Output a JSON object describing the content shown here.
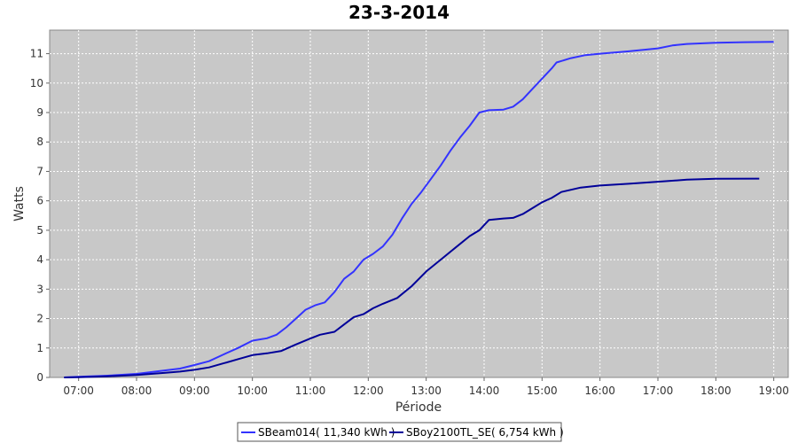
{
  "chart_data": {
    "type": "line",
    "title": "23-3-2014",
    "xlabel": "Période",
    "ylabel": "Watts",
    "x_ticks": [
      "07:00",
      "08:00",
      "09:00",
      "10:00",
      "11:00",
      "12:00",
      "13:00",
      "14:00",
      "15:00",
      "16:00",
      "17:00",
      "18:00",
      "19:00"
    ],
    "xlim": [
      "06:30",
      "19:15"
    ],
    "ylim": [
      0,
      11.8
    ],
    "y_ticks": [
      0,
      1,
      2,
      3,
      4,
      5,
      6,
      7,
      8,
      9,
      10,
      11
    ],
    "grid": true,
    "legend_position": "bottom",
    "series": [
      {
        "name": "SBeam014( 11,340 kWh )",
        "color": "#3333ff",
        "points": [
          [
            "06:45",
            0.0
          ],
          [
            "07:00",
            0.02
          ],
          [
            "07:30",
            0.06
          ],
          [
            "08:00",
            0.12
          ],
          [
            "08:15",
            0.18
          ],
          [
            "08:30",
            0.24
          ],
          [
            "08:45",
            0.3
          ],
          [
            "09:00",
            0.42
          ],
          [
            "09:15",
            0.55
          ],
          [
            "09:30",
            0.78
          ],
          [
            "09:45",
            1.0
          ],
          [
            "10:00",
            1.25
          ],
          [
            "10:15",
            1.33
          ],
          [
            "10:25",
            1.45
          ],
          [
            "10:35",
            1.7
          ],
          [
            "10:45",
            2.0
          ],
          [
            "10:55",
            2.3
          ],
          [
            "11:05",
            2.45
          ],
          [
            "11:15",
            2.55
          ],
          [
            "11:25",
            2.9
          ],
          [
            "11:35",
            3.35
          ],
          [
            "11:45",
            3.6
          ],
          [
            "11:55",
            4.0
          ],
          [
            "12:05",
            4.2
          ],
          [
            "12:15",
            4.45
          ],
          [
            "12:25",
            4.85
          ],
          [
            "12:35",
            5.4
          ],
          [
            "12:45",
            5.9
          ],
          [
            "12:55",
            6.3
          ],
          [
            "13:05",
            6.75
          ],
          [
            "13:15",
            7.2
          ],
          [
            "13:25",
            7.7
          ],
          [
            "13:35",
            8.15
          ],
          [
            "13:45",
            8.55
          ],
          [
            "13:55",
            9.0
          ],
          [
            "14:05",
            9.08
          ],
          [
            "14:20",
            9.1
          ],
          [
            "14:30",
            9.2
          ],
          [
            "14:40",
            9.45
          ],
          [
            "14:50",
            9.8
          ],
          [
            "15:00",
            10.15
          ],
          [
            "15:10",
            10.5
          ],
          [
            "15:15",
            10.7
          ],
          [
            "15:30",
            10.85
          ],
          [
            "15:45",
            10.95
          ],
          [
            "16:00",
            11.0
          ],
          [
            "16:30",
            11.08
          ],
          [
            "17:00",
            11.18
          ],
          [
            "17:15",
            11.28
          ],
          [
            "17:30",
            11.33
          ],
          [
            "18:00",
            11.37
          ],
          [
            "18:30",
            11.39
          ],
          [
            "19:00",
            11.4
          ]
        ]
      },
      {
        "name": "SBoy2100TL_SE( 6,754 kWh )",
        "color": "#000099",
        "points": [
          [
            "06:45",
            0.0
          ],
          [
            "07:00",
            0.01
          ],
          [
            "07:30",
            0.04
          ],
          [
            "08:00",
            0.08
          ],
          [
            "08:15",
            0.12
          ],
          [
            "08:30",
            0.16
          ],
          [
            "08:45",
            0.2
          ],
          [
            "09:00",
            0.26
          ],
          [
            "09:15",
            0.34
          ],
          [
            "09:30",
            0.48
          ],
          [
            "09:45",
            0.62
          ],
          [
            "10:00",
            0.76
          ],
          [
            "10:15",
            0.82
          ],
          [
            "10:30",
            0.9
          ],
          [
            "10:45",
            1.12
          ],
          [
            "11:00",
            1.32
          ],
          [
            "11:10",
            1.45
          ],
          [
            "11:25",
            1.55
          ],
          [
            "11:35",
            1.8
          ],
          [
            "11:45",
            2.05
          ],
          [
            "11:55",
            2.15
          ],
          [
            "12:05",
            2.35
          ],
          [
            "12:15",
            2.5
          ],
          [
            "12:30",
            2.7
          ],
          [
            "12:45",
            3.1
          ],
          [
            "13:00",
            3.6
          ],
          [
            "13:15",
            4.0
          ],
          [
            "13:30",
            4.4
          ],
          [
            "13:45",
            4.8
          ],
          [
            "13:55",
            5.0
          ],
          [
            "14:05",
            5.35
          ],
          [
            "14:20",
            5.4
          ],
          [
            "14:30",
            5.42
          ],
          [
            "14:40",
            5.55
          ],
          [
            "14:50",
            5.75
          ],
          [
            "15:00",
            5.95
          ],
          [
            "15:10",
            6.1
          ],
          [
            "15:20",
            6.3
          ],
          [
            "15:40",
            6.45
          ],
          [
            "16:00",
            6.52
          ],
          [
            "16:30",
            6.58
          ],
          [
            "17:00",
            6.65
          ],
          [
            "17:30",
            6.72
          ],
          [
            "18:00",
            6.75
          ],
          [
            "18:45",
            6.754
          ]
        ]
      }
    ]
  }
}
